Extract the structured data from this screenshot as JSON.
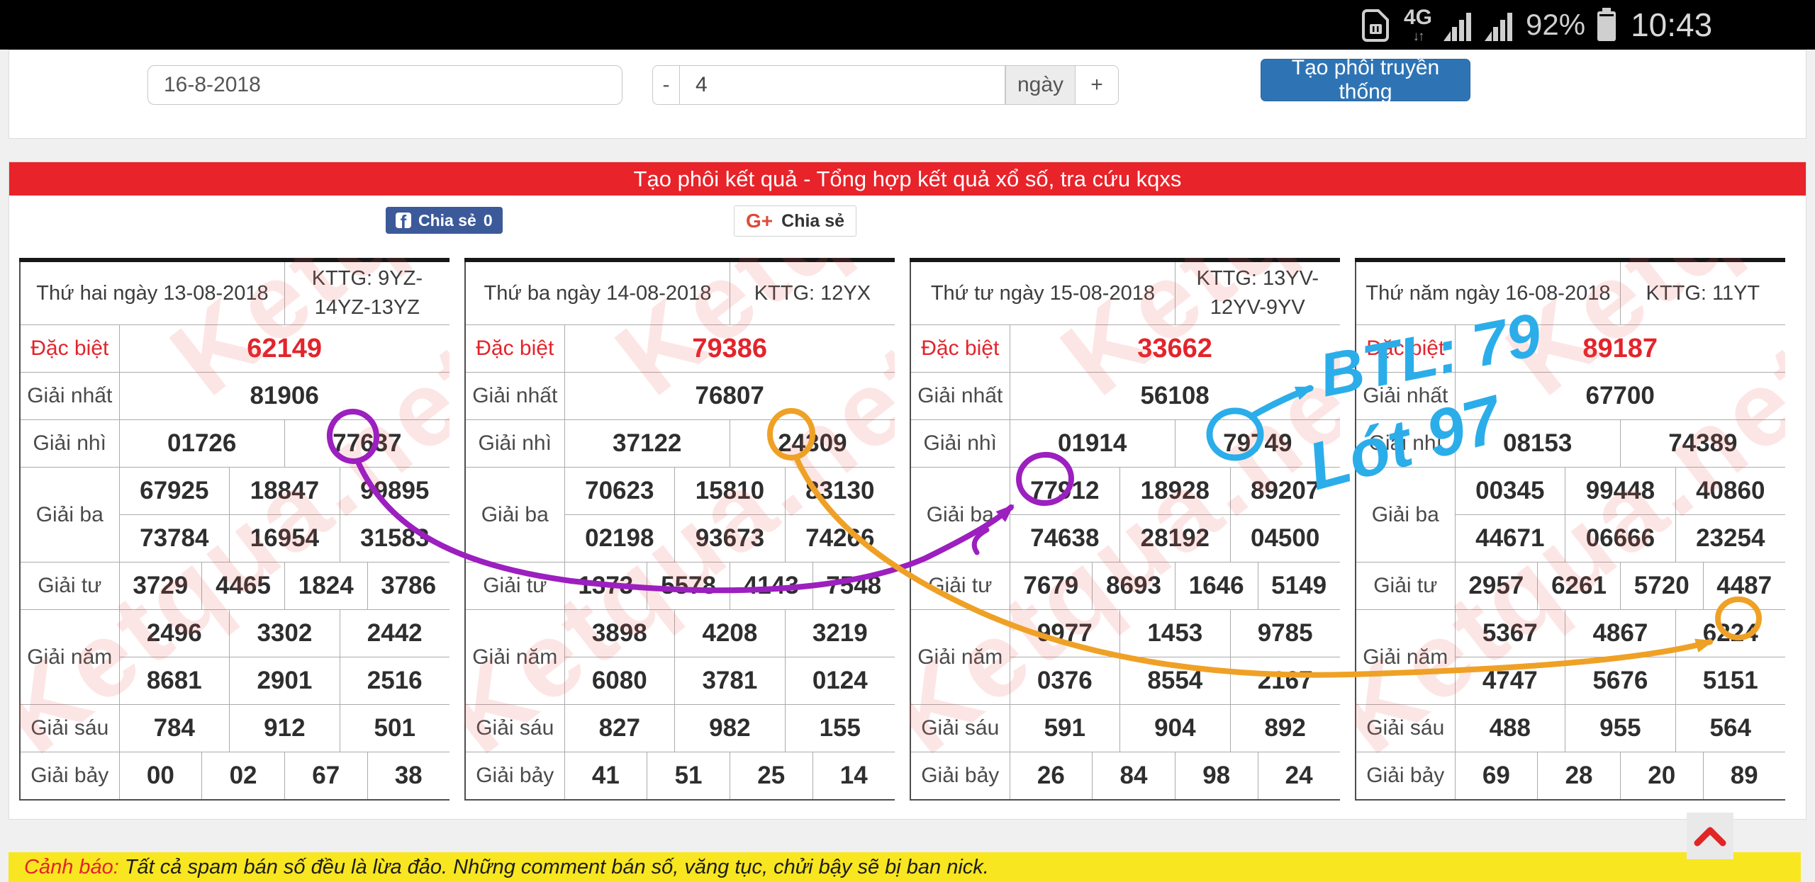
{
  "status_bar": {
    "network": "4G",
    "updown": "↓↑",
    "battery_pct": "92%",
    "time": "10:43"
  },
  "form": {
    "date_value": "16-8-2018",
    "minus_label": "-",
    "days_value": "4",
    "days_unit": "ngày",
    "plus_label": "+",
    "submit_label": "Tạo phôi truyền thống"
  },
  "header": {
    "title": "Tạo phôi kết quả - Tổng hợp kết quả xổ số, tra cứu kqxs"
  },
  "share": {
    "facebook_icon": "f",
    "facebook_label": "Chia sẻ",
    "facebook_count": "0",
    "google_icon": "G+",
    "google_label": "Chia sẻ"
  },
  "watermark": "Ketqua.net",
  "labels": {
    "dac_biet": "Đặc biệt",
    "giai_nhat": "Giải nhất",
    "giai_nhi": "Giải nhì",
    "giai_ba": "Giải ba",
    "giai_tu": "Giải tư",
    "giai_nam": "Giải năm",
    "giai_sau": "Giải sáu",
    "giai_bay": "Giải bảy"
  },
  "tables": [
    {
      "day_title": "Thứ hai ngày 13-08-2018",
      "kttg": "KTTG: 9YZ-14YZ-13YZ",
      "dac_biet": "62149",
      "giai_nhat": "81906",
      "giai_nhi": [
        "01726",
        "77637"
      ],
      "giai_ba": [
        [
          "67925",
          "18847",
          "99895"
        ],
        [
          "73784",
          "16954",
          "31583"
        ]
      ],
      "giai_tu": [
        "3729",
        "4465",
        "1824",
        "3786"
      ],
      "giai_nam": [
        [
          "2496",
          "3302",
          "2442"
        ],
        [
          "8681",
          "2901",
          "2516"
        ]
      ],
      "giai_sau": [
        "784",
        "912",
        "501"
      ],
      "giai_bay": [
        "00",
        "02",
        "67",
        "38"
      ]
    },
    {
      "day_title": "Thứ ba ngày 14-08-2018",
      "kttg": "KTTG: 12YX",
      "dac_biet": "79386",
      "giai_nhat": "76807",
      "giai_nhi": [
        "37122",
        "24309"
      ],
      "giai_ba": [
        [
          "70623",
          "15810",
          "83130"
        ],
        [
          "02198",
          "93673",
          "74266"
        ]
      ],
      "giai_tu": [
        "1373",
        "5578",
        "4143",
        "7548"
      ],
      "giai_nam": [
        [
          "3898",
          "4208",
          "3219"
        ],
        [
          "6080",
          "3781",
          "0124"
        ]
      ],
      "giai_sau": [
        "827",
        "982",
        "155"
      ],
      "giai_bay": [
        "41",
        "51",
        "25",
        "14"
      ]
    },
    {
      "day_title": "Thứ tư ngày 15-08-2018",
      "kttg": "KTTG: 13YV-12YV-9YV",
      "dac_biet": "33662",
      "giai_nhat": "56108",
      "giai_nhi": [
        "01914",
        "79749"
      ],
      "giai_ba": [
        [
          "77912",
          "18928",
          "89207"
        ],
        [
          "74638",
          "28192",
          "04500"
        ]
      ],
      "giai_tu": [
        "7679",
        "8693",
        "1646",
        "5149"
      ],
      "giai_nam": [
        [
          "9977",
          "1453",
          "9785"
        ],
        [
          "0376",
          "8554",
          "2167"
        ]
      ],
      "giai_sau": [
        "591",
        "904",
        "892"
      ],
      "giai_bay": [
        "26",
        "84",
        "98",
        "24"
      ]
    },
    {
      "day_title": "Thứ năm ngày 16-08-2018",
      "kttg": "KTTG: 11YT",
      "dac_biet": "89187",
      "giai_nhat": "67700",
      "giai_nhi": [
        "08153",
        "74389"
      ],
      "giai_ba": [
        [
          "00345",
          "99448",
          "40860"
        ],
        [
          "44671",
          "06666",
          "23254"
        ]
      ],
      "giai_tu": [
        "2957",
        "6261",
        "5720",
        "4487"
      ],
      "giai_nam": [
        [
          "5367",
          "4867",
          "6224"
        ],
        [
          "4747",
          "5676",
          "5151"
        ]
      ],
      "giai_sau": [
        "488",
        "955",
        "564"
      ],
      "giai_bay": [
        "69",
        "28",
        "20",
        "89"
      ]
    }
  ],
  "annotations": {
    "btl_text": "BTL: 79",
    "lot_text": "Lót 97",
    "colors": {
      "purple": "#9c1fbf",
      "orange": "#efa126",
      "cyan": "#2badea"
    }
  },
  "warning": {
    "prefix": "Cảnh báo:",
    "text": "Tất cả spam bán số đều là lừa đảo. Những comment bán số, văng tục, chửi bậy sẽ bị ban nick."
  }
}
